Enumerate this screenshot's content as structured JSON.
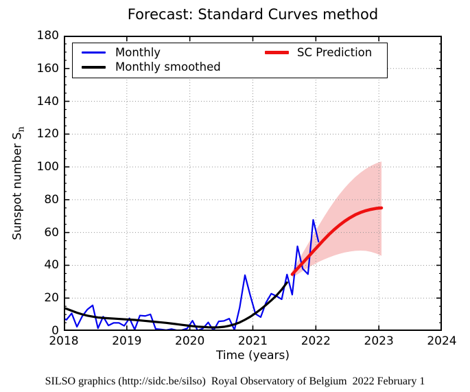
{
  "title": "Forecast: Standard Curves method",
  "footer": "SILSO graphics (http://sidc.be/silso)  Royal Observatory of Belgium  2022 February 1",
  "legend": {
    "monthly": "Monthly",
    "smoothed": "Monthly smoothed",
    "prediction": "SC Prediction"
  },
  "colors": {
    "monthly": "#0000ee",
    "smoothed": "#000000",
    "prediction": "#ee1111",
    "band": "#f8c8c8",
    "grid": "#909090",
    "frame": "#000000"
  },
  "chart_data": {
    "type": "line",
    "title": "Forecast: Standard Curves method",
    "xlabel": "Time (years)",
    "ylabel": "Sunspot number S",
    "ylabel_sub": "n",
    "xlim": [
      2018,
      2024
    ],
    "ylim": [
      0,
      180
    ],
    "x_ticks": [
      2018,
      2019,
      2020,
      2021,
      2022,
      2023,
      2024
    ],
    "y_ticks": [
      0,
      20,
      40,
      60,
      80,
      100,
      120,
      140,
      160,
      180
    ],
    "y_minor_step": 5,
    "grid": true,
    "grid_color": "#909090",
    "legend_position": "upper left inside plot, boxed",
    "series": [
      {
        "name": "Monthly",
        "color": "#0000ee",
        "width": 2.2,
        "x": [
          2018.0,
          2018.042,
          2018.125,
          2018.208,
          2018.292,
          2018.375,
          2018.458,
          2018.542,
          2018.625,
          2018.708,
          2018.792,
          2018.875,
          2018.958,
          2019.042,
          2019.125,
          2019.208,
          2019.292,
          2019.375,
          2019.458,
          2019.542,
          2019.625,
          2019.708,
          2019.792,
          2019.875,
          2019.958,
          2020.042,
          2020.125,
          2020.208,
          2020.292,
          2020.375,
          2020.458,
          2020.542,
          2020.625,
          2020.708,
          2020.792,
          2020.875,
          2020.958,
          2021.042,
          2021.125,
          2021.208,
          2021.292,
          2021.375,
          2021.458,
          2021.542,
          2021.625,
          2021.708,
          2021.792,
          2021.875,
          2021.958,
          2022.042
        ],
        "y": [
          7.5,
          6.8,
          10.7,
          2.5,
          8.9,
          13.1,
          15.6,
          1.6,
          8.7,
          3.3,
          4.9,
          4.9,
          3.1,
          7.7,
          0.8,
          9.4,
          9.1,
          10.1,
          1.2,
          0.9,
          0.5,
          1.1,
          0.4,
          0.5,
          1.5,
          6.2,
          0.2,
          1.5,
          5.2,
          0.2,
          5.8,
          6.1,
          7.5,
          0.6,
          14.4,
          34.0,
          21.8,
          10.4,
          8.4,
          17.2,
          22.7,
          21.2,
          19.3,
          34.4,
          22.1,
          51.6,
          37.9,
          34.6,
          67.7,
          54.4
        ]
      },
      {
        "name": "Monthly smoothed",
        "color": "#000000",
        "width": 3.2,
        "x": [
          2018.0,
          2018.042,
          2018.125,
          2018.208,
          2018.292,
          2018.375,
          2018.458,
          2018.542,
          2018.625,
          2018.708,
          2018.792,
          2018.875,
          2018.958,
          2019.042,
          2019.125,
          2019.208,
          2019.292,
          2019.375,
          2019.458,
          2019.542,
          2019.625,
          2019.708,
          2019.792,
          2019.875,
          2019.958,
          2020.042,
          2020.125,
          2020.208,
          2020.292,
          2020.375,
          2020.458,
          2020.542,
          2020.625,
          2020.708,
          2020.792,
          2020.875,
          2020.958,
          2021.042,
          2021.125,
          2021.208,
          2021.292,
          2021.375,
          2021.458,
          2021.542
        ],
        "y": [
          13.9,
          13.5,
          12.3,
          11.1,
          10.1,
          9.3,
          8.7,
          8.2,
          7.9,
          7.7,
          7.5,
          7.3,
          7.1,
          6.9,
          6.7,
          6.4,
          6.1,
          5.8,
          5.5,
          5.2,
          4.9,
          4.5,
          4.1,
          3.7,
          3.3,
          2.9,
          2.6,
          2.4,
          2.2,
          2.1,
          2.2,
          2.5,
          3.1,
          4.0,
          5.2,
          6.8,
          8.6,
          10.8,
          13.2,
          15.8,
          18.6,
          21.6,
          25.2,
          29.5
        ]
      },
      {
        "name": "SC Prediction",
        "color": "#ee1111",
        "width": 4.5,
        "x": [
          2021.625,
          2021.708,
          2021.792,
          2021.875,
          2021.958,
          2022.042,
          2022.125,
          2022.208,
          2022.292,
          2022.375,
          2022.458,
          2022.542,
          2022.625,
          2022.708,
          2022.792,
          2022.875,
          2022.958,
          2023.042
        ],
        "y": [
          34.5,
          38.0,
          41.5,
          45.0,
          48.5,
          52.0,
          55.5,
          58.8,
          61.8,
          64.5,
          66.9,
          69.0,
          70.8,
          72.2,
          73.3,
          74.1,
          74.7,
          75.0
        ]
      }
    ],
    "band": {
      "name": "prediction-uncertainty-band",
      "color": "#f8c8c8",
      "x": [
        2021.625,
        2021.708,
        2021.792,
        2021.875,
        2021.958,
        2022.042,
        2022.125,
        2022.208,
        2022.292,
        2022.375,
        2022.458,
        2022.542,
        2022.625,
        2022.708,
        2022.792,
        2022.875,
        2022.958,
        2023.042
      ],
      "upper": [
        36.5,
        42.0,
        47.5,
        53.0,
        58.5,
        64.0,
        69.3,
        74.3,
        79.0,
        83.3,
        87.2,
        90.7,
        93.8,
        96.5,
        98.8,
        100.7,
        102.2,
        103.3
      ],
      "lower": [
        32.5,
        34.5,
        36.5,
        38.5,
        40.3,
        42.0,
        43.5,
        44.8,
        46.0,
        47.0,
        47.8,
        48.4,
        48.8,
        49.0,
        48.8,
        48.2,
        47.2,
        45.8
      ]
    }
  }
}
